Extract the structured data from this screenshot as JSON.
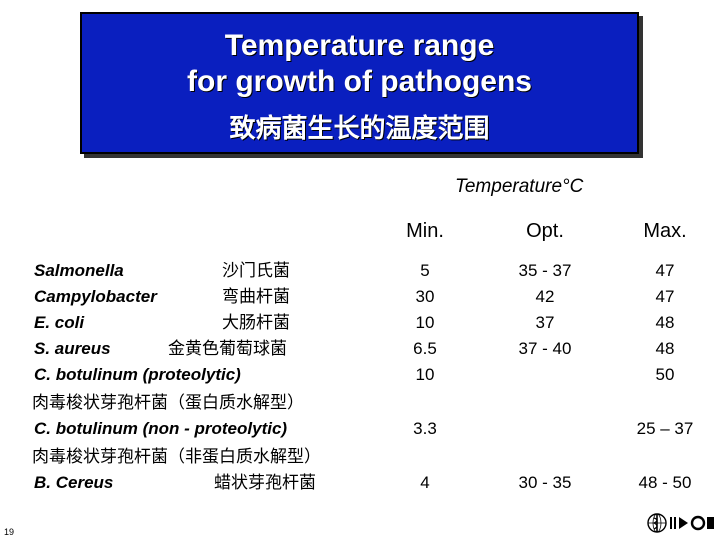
{
  "title": {
    "line1": "Temperature range",
    "line2": "for growth of pathogens",
    "line3": "致病菌生长的温度范围"
  },
  "table": {
    "group_header": "Temperature°C",
    "col_min": "Min.",
    "col_opt": "Opt.",
    "col_max": "Max.",
    "rows": [
      {
        "name": "Salmonella",
        "cn": "沙门氏菌",
        "min": "5",
        "opt": "35 - 37",
        "max": "47"
      },
      {
        "name": "Campylobacter",
        "cn": "弯曲杆菌",
        "min": "30",
        "opt": "42",
        "max": "47"
      },
      {
        "name": "E. coli",
        "cn": "大肠杆菌",
        "min": "10",
        "opt": "37",
        "max": "48"
      },
      {
        "name": "S. aureus",
        "cn": "金黄色葡萄球菌",
        "min": "6.5",
        "opt": "37 - 40",
        "max": "48"
      },
      {
        "name": "C. botulinum (proteolytic)",
        "cn": "",
        "min": "10",
        "opt": "",
        "max": "50"
      },
      {
        "name": "",
        "cn": "肉毒梭状芽孢杆菌（蛋白质水解型）",
        "min": "",
        "opt": "",
        "max": ""
      },
      {
        "name": "C. botulinum (non - proteolytic)",
        "cn": "",
        "min": "3.3",
        "opt": "",
        "max": "25 – 37"
      },
      {
        "name": "",
        "cn": "肉毒梭状芽孢杆菌（非蛋白质水解型）",
        "min": "",
        "opt": "",
        "max": ""
      },
      {
        "name": "B. Cereus",
        "cn": "蜡状芽孢杆菌",
        "min": "4",
        "opt": "30 - 35",
        "max": "48 - 50"
      }
    ]
  },
  "footer": {
    "page_number": "19",
    "logo_icon": "who-emblem-icon"
  },
  "colors": {
    "title_bg": "#0a1fbf",
    "title_text": "#ffffff"
  }
}
